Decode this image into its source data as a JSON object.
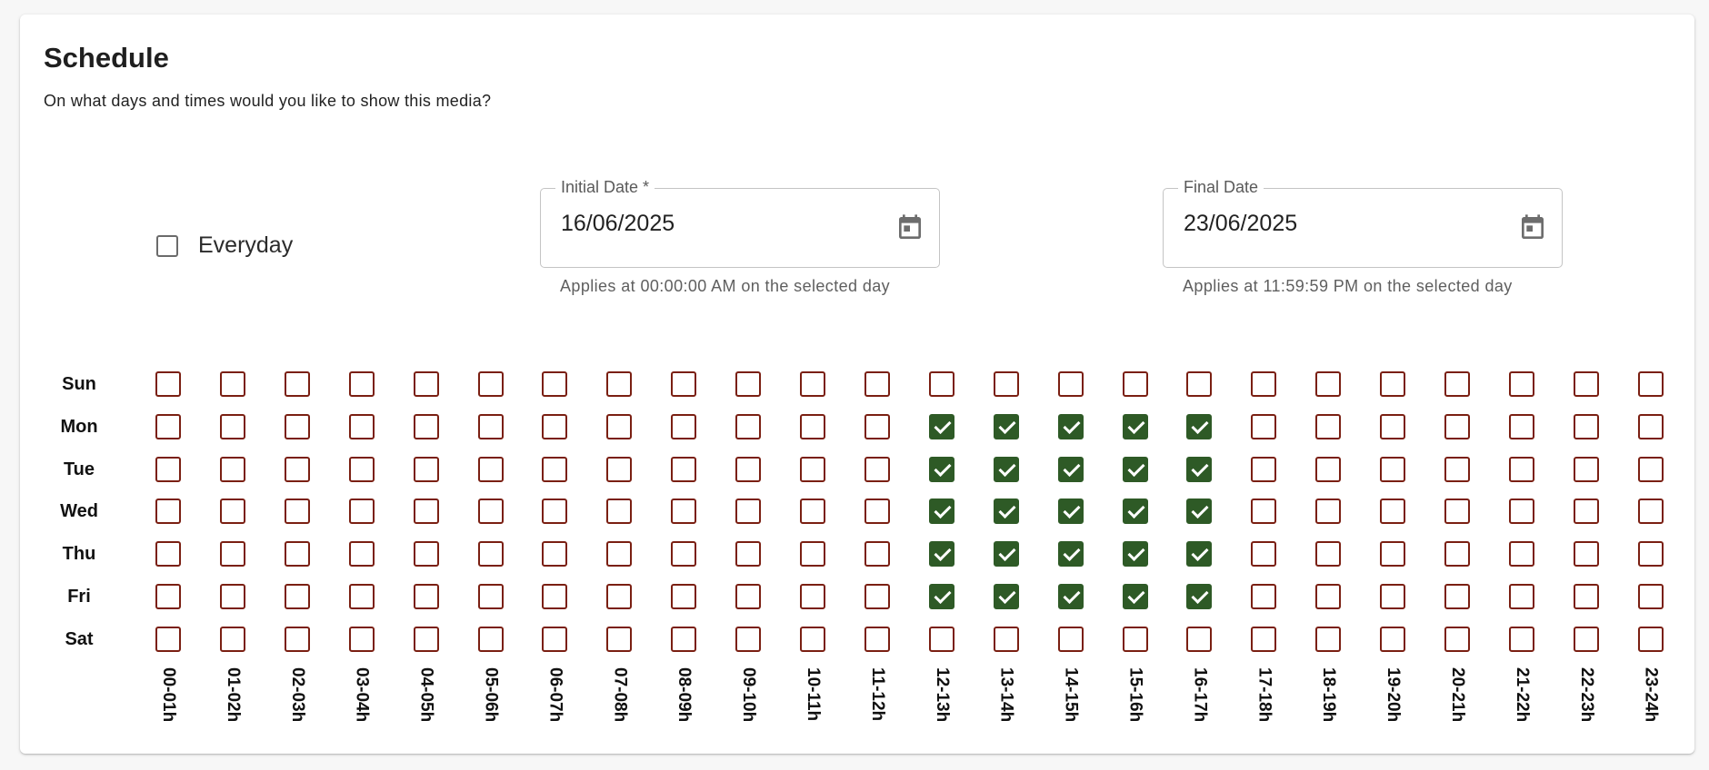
{
  "schedule": {
    "title": "Schedule",
    "subtitle": "On what days and times would you like to show this media?",
    "everyday": {
      "label": "Everyday",
      "checked": false
    },
    "initial_date": {
      "label": "Initial Date *",
      "value": "16/06/2025",
      "helper": "Applies at 00:00:00 AM on the selected day"
    },
    "final_date": {
      "label": "Final Date",
      "value": "23/06/2025",
      "helper": "Applies at 11:59:59 PM on the selected day"
    },
    "days": [
      "Sun",
      "Mon",
      "Tue",
      "Wed",
      "Thu",
      "Fri",
      "Sat"
    ],
    "hours": [
      "00-01h",
      "01-02h",
      "02-03h",
      "03-04h",
      "04-05h",
      "05-06h",
      "06-07h",
      "07-08h",
      "08-09h",
      "09-10h",
      "10-11h",
      "11-12h",
      "12-13h",
      "13-14h",
      "14-15h",
      "15-16h",
      "16-17h",
      "17-18h",
      "18-19h",
      "19-20h",
      "20-21h",
      "21-22h",
      "22-23h",
      "23-24h"
    ],
    "selected": [
      [],
      [
        12,
        13,
        14,
        15,
        16
      ],
      [
        12,
        13,
        14,
        15,
        16
      ],
      [
        12,
        13,
        14,
        15,
        16
      ],
      [
        12,
        13,
        14,
        15,
        16
      ],
      [
        12,
        13,
        14,
        15,
        16
      ],
      []
    ]
  },
  "icons": {
    "calendar": "calendar-icon",
    "check": "checkmark-icon"
  },
  "colors": {
    "slot_border": "#7a1f12",
    "slot_checked": "#2e5a26"
  }
}
